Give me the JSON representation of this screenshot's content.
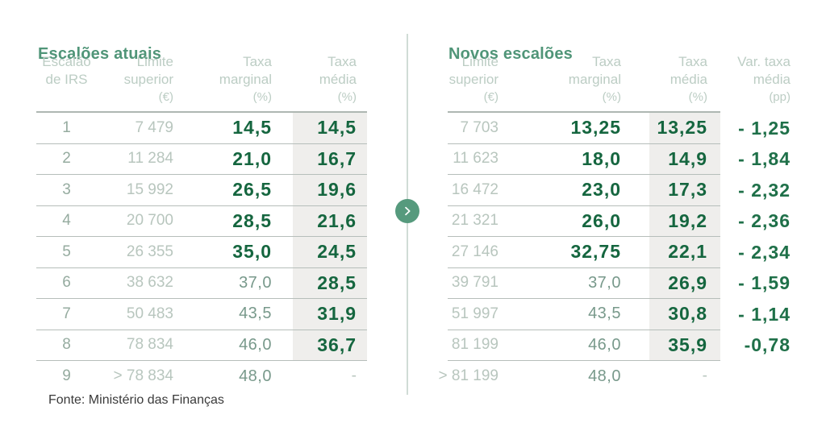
{
  "footer": {
    "source": "Fonte: Ministério das Finanças"
  },
  "divider": {
    "icon": "chevron-right"
  },
  "colors": {
    "accent_green": "#509578",
    "dark_green": "#15663f",
    "light_gray_green": "#b8c6be",
    "band_gray": "#efeeec",
    "arrow_green": "#569a7d"
  },
  "chart_data": [
    {
      "type": "table",
      "title": "Escalões atuais",
      "columns": [
        "Escalão de IRS",
        "Limite superior (€)",
        "Taxa marginal (%)",
        "Taxa média (%)"
      ],
      "header_lines": [
        [
          "Escalão",
          "de IRS",
          ""
        ],
        [
          "Limite",
          "superior",
          "(€)"
        ],
        [
          "Taxa",
          "marginal",
          "(%)"
        ],
        [
          "Taxa",
          "média",
          "(%)"
        ]
      ],
      "rows": [
        {
          "escalao": "1",
          "limite": "7 479",
          "marginal": "14,5",
          "media": "14,5"
        },
        {
          "escalao": "2",
          "limite": "11 284",
          "marginal": "21,0",
          "media": "16,7"
        },
        {
          "escalao": "3",
          "limite": "15 992",
          "marginal": "26,5",
          "media": "19,6"
        },
        {
          "escalao": "4",
          "limite": "20 700",
          "marginal": "28,5",
          "media": "21,6"
        },
        {
          "escalao": "5",
          "limite": "26 355",
          "marginal": "35,0",
          "media": "24,5"
        },
        {
          "escalao": "6",
          "limite": "38 632",
          "marginal": "37,0",
          "media": "28,5"
        },
        {
          "escalao": "7",
          "limite": "50 483",
          "marginal": "43,5",
          "media": "31,9"
        },
        {
          "escalao": "8",
          "limite": "78 834",
          "marginal": "46,0",
          "media": "36,7"
        },
        {
          "escalao": "9",
          "limite": "> 78 834",
          "marginal": "48,0",
          "media": "-"
        }
      ]
    },
    {
      "type": "table",
      "title": "Novos escalões",
      "columns": [
        "Limite superior (€)",
        "Taxa marginal (%)",
        "Taxa média (%)",
        "Var. taxa média (pp)"
      ],
      "header_lines": [
        [
          "Limite",
          "superior",
          "(€)"
        ],
        [
          "Taxa",
          "marginal",
          "(%)"
        ],
        [
          "Taxa",
          "média",
          "(%)"
        ],
        [
          "Var. taxa",
          "média",
          "(pp)"
        ]
      ],
      "rows": [
        {
          "limite": "7 703",
          "marginal": "13,25",
          "media": "13,25",
          "var": "- 1,25"
        },
        {
          "limite": "11 623",
          "marginal": "18,0",
          "media": "14,9",
          "var": "- 1,84"
        },
        {
          "limite": "16 472",
          "marginal": "23,0",
          "media": "17,3",
          "var": "- 2,32"
        },
        {
          "limite": "21 321",
          "marginal": "26,0",
          "media": "19,2",
          "var": "- 2,36"
        },
        {
          "limite": "27 146",
          "marginal": "32,75",
          "media": "22,1",
          "var": "- 2,34"
        },
        {
          "limite": "39 791",
          "marginal": "37,0",
          "media": "26,9",
          "var": "- 1,59"
        },
        {
          "limite": "51 997",
          "marginal": "43,5",
          "media": "30,8",
          "var": "- 1,14"
        },
        {
          "limite": "81 199",
          "marginal": "46,0",
          "media": "35,9",
          "var": "-0,78"
        },
        {
          "limite": "> 81 199",
          "marginal": "48,0",
          "media": "-",
          "var": ""
        }
      ]
    }
  ]
}
